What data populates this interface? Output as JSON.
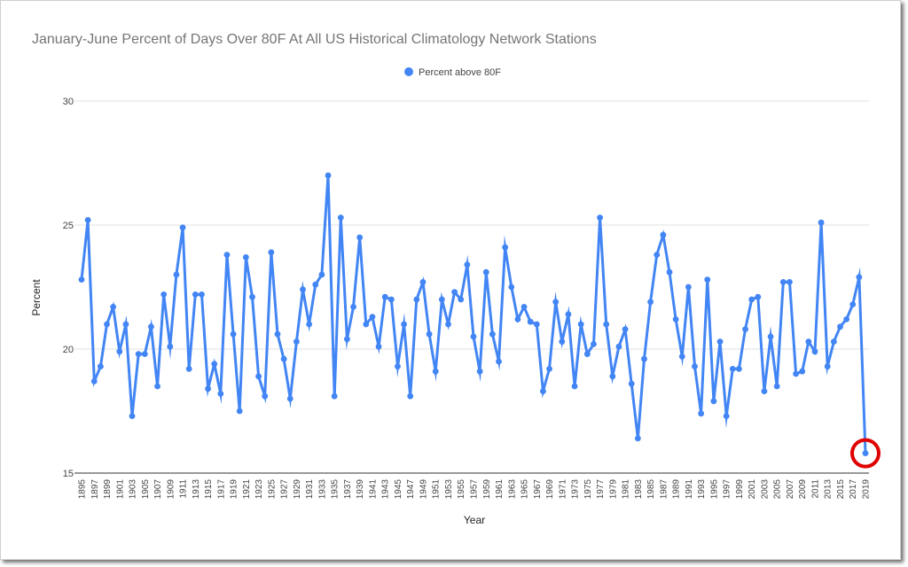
{
  "chart_data": {
    "type": "line",
    "title": "January-June Percent of Days Over 80F At All US Historical Climatology Network Stations",
    "xlabel": "Year",
    "ylabel": "Percent",
    "ylim": [
      15,
      30
    ],
    "yticks": [
      15,
      20,
      25,
      30
    ],
    "grid": true,
    "legend_position": "top",
    "series": [
      {
        "name": "Percent above 80F",
        "color": "#4285f4",
        "x": [
          1895,
          1896,
          1897,
          1898,
          1899,
          1900,
          1901,
          1902,
          1903,
          1904,
          1905,
          1906,
          1907,
          1908,
          1909,
          1910,
          1911,
          1912,
          1913,
          1914,
          1915,
          1916,
          1917,
          1918,
          1919,
          1920,
          1921,
          1922,
          1923,
          1924,
          1925,
          1926,
          1927,
          1928,
          1929,
          1930,
          1931,
          1932,
          1933,
          1934,
          1935,
          1936,
          1937,
          1938,
          1939,
          1940,
          1941,
          1942,
          1943,
          1944,
          1945,
          1946,
          1947,
          1948,
          1949,
          1950,
          1951,
          1952,
          1953,
          1954,
          1955,
          1956,
          1957,
          1958,
          1959,
          1960,
          1961,
          1962,
          1963,
          1964,
          1965,
          1966,
          1967,
          1968,
          1969,
          1970,
          1971,
          1972,
          1973,
          1974,
          1975,
          1976,
          1977,
          1978,
          1979,
          1980,
          1981,
          1982,
          1983,
          1984,
          1985,
          1986,
          1987,
          1988,
          1989,
          1990,
          1991,
          1992,
          1993,
          1994,
          1995,
          1996,
          1997,
          1998,
          1999,
          2000,
          2001,
          2002,
          2003,
          2004,
          2005,
          2006,
          2007,
          2008,
          2009,
          2010,
          2011,
          2012,
          2013,
          2014,
          2015,
          2016,
          2017,
          2018,
          2019
        ],
        "values": [
          22.8,
          25.2,
          18.7,
          19.3,
          21.0,
          21.7,
          19.9,
          21.0,
          17.3,
          19.8,
          19.8,
          20.9,
          18.5,
          22.2,
          20.1,
          23.0,
          24.9,
          19.2,
          22.2,
          22.2,
          18.4,
          19.4,
          18.2,
          23.8,
          20.6,
          17.5,
          23.7,
          22.1,
          18.9,
          18.1,
          23.9,
          20.6,
          19.6,
          18.0,
          20.3,
          22.4,
          21.0,
          22.6,
          23.0,
          27.0,
          18.1,
          25.3,
          20.4,
          21.7,
          24.5,
          21.0,
          21.3,
          20.1,
          22.1,
          22.0,
          19.3,
          21.0,
          18.1,
          22.0,
          22.7,
          20.6,
          19.1,
          22.0,
          21.0,
          22.3,
          22.0,
          23.4,
          20.5,
          19.1,
          23.1,
          20.6,
          19.5,
          24.1,
          22.5,
          21.2,
          21.7,
          21.1,
          21.0,
          18.3,
          19.2,
          21.9,
          20.3,
          21.4,
          18.5,
          21.0,
          19.8,
          20.2,
          25.3,
          21.0,
          18.9,
          20.1,
          20.8,
          18.6,
          16.4,
          19.6,
          21.9,
          23.8,
          24.6,
          23.1,
          21.2,
          19.7,
          22.5,
          19.3,
          17.4,
          22.8,
          17.9,
          20.3,
          17.3,
          19.2,
          19.2,
          20.8,
          22.0,
          22.1,
          18.3,
          20.5,
          18.5,
          22.7,
          22.7,
          19.0,
          19.1,
          20.3,
          19.9,
          25.1,
          19.3,
          20.3,
          20.9,
          21.2,
          21.8,
          22.9,
          15.8
        ]
      }
    ],
    "xtick_labels": [
      "1895",
      "1897",
      "1899",
      "1901",
      "1903",
      "1905",
      "1907",
      "1909",
      "1911",
      "1913",
      "1915",
      "1917",
      "1919",
      "1921",
      "1923",
      "1925",
      "1927",
      "1929",
      "1931",
      "1933",
      "1935",
      "1937",
      "1939",
      "1941",
      "1943",
      "1945",
      "1947",
      "1949",
      "1951",
      "1953",
      "1955",
      "1957",
      "1959",
      "1961",
      "1963",
      "1965",
      "1967",
      "1969",
      "1971",
      "1973",
      "1975",
      "1977",
      "1979",
      "1981",
      "1983",
      "1985",
      "1987",
      "1989",
      "1991",
      "1993",
      "1995",
      "1997",
      "1999",
      "2001",
      "2003",
      "2005",
      "2007",
      "2009",
      "2011",
      "2013",
      "2015",
      "2017",
      "2019"
    ],
    "annotation": {
      "type": "circle",
      "color": "#e00000",
      "x": 2019,
      "y": 15.8
    }
  }
}
